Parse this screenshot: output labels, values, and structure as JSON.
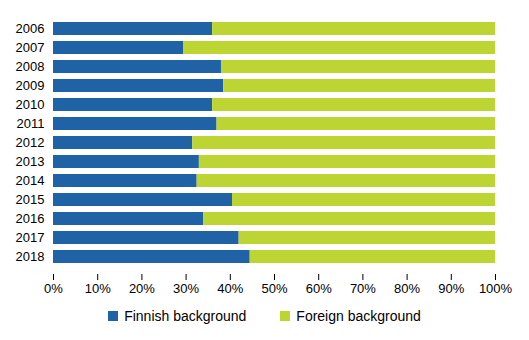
{
  "chart_data": {
    "type": "bar",
    "orientation": "horizontal",
    "stacked": true,
    "categories": [
      "2006",
      "2007",
      "2008",
      "2009",
      "2010",
      "2011",
      "2012",
      "2013",
      "2014",
      "2015",
      "2016",
      "2017",
      "2018"
    ],
    "series": [
      {
        "name": "Finnish background",
        "color": "#1f62a6",
        "values": [
          36,
          29.5,
          38,
          38.5,
          36,
          37,
          31.5,
          33,
          32.5,
          40.5,
          34,
          42,
          44.5
        ]
      },
      {
        "name": "Foreign background",
        "color": "#bcd533",
        "values": [
          64,
          70.5,
          62,
          61.5,
          64,
          63,
          68.5,
          67,
          67.5,
          59.5,
          66,
          58,
          55.5
        ]
      }
    ],
    "xlim": [
      0,
      100
    ],
    "xticks": [
      {
        "value": 0,
        "label": "0%"
      },
      {
        "value": 10,
        "label": "10%"
      },
      {
        "value": 20,
        "label": "20%"
      },
      {
        "value": 30,
        "label": "30%"
      },
      {
        "value": 40,
        "label": "40%"
      },
      {
        "value": 50,
        "label": "50%"
      },
      {
        "value": 60,
        "label": "60%"
      },
      {
        "value": 70,
        "label": "70%"
      },
      {
        "value": 80,
        "label": "80%"
      },
      {
        "value": 90,
        "label": "90%"
      },
      {
        "value": 100,
        "label": "100%"
      }
    ],
    "grid": false,
    "legend": "bottom"
  }
}
